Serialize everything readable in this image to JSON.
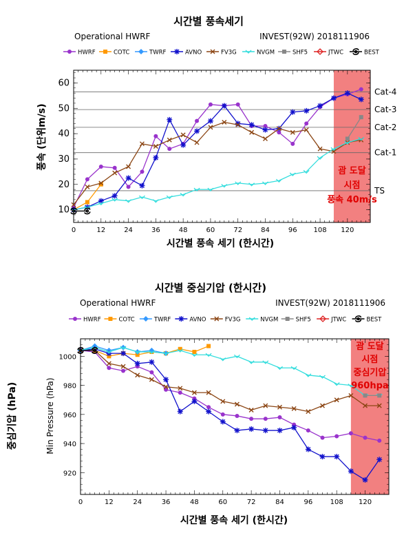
{
  "colors": {
    "HWRF": "#9933cc",
    "COTC": "#ff9900",
    "TWRF": "#3399ff",
    "AVNO": "#1111cc",
    "FV3G": "#8b4513",
    "NVGM": "#33dddd",
    "SHF5": "#888888",
    "JTWC": "#dd2222",
    "BEST": "#000000",
    "highlight": "#ee5555"
  },
  "legend": [
    "HWRF",
    "COTC",
    "TWRF",
    "AVNO",
    "FV3G",
    "NVGM",
    "SHF5",
    "JTWC",
    "BEST"
  ],
  "chart_data": [
    {
      "type": "line",
      "title": "시간별 풍속세기",
      "model_label": "Operational HWRF",
      "storm_label": "INVEST(92W) 2018111906",
      "xlabel": "시간별 풍속 세기 (한시간)",
      "ylabel": "풍속 (단위m/s)",
      "xlim": [
        0,
        130
      ],
      "ylim": [
        5,
        65
      ],
      "xticks": [
        "0",
        "12",
        "24",
        "36",
        "48",
        "60",
        "72",
        "84",
        "96",
        "108",
        "120"
      ],
      "yticks": [
        "10",
        "20",
        "30",
        "40",
        "50",
        "60"
      ],
      "categories_lines": [
        {
          "label": "Cat-4",
          "value": 56.5
        },
        {
          "label": "Cat-3",
          "value": 49.5
        },
        {
          "label": "Cat-2",
          "value": 42.5
        },
        {
          "label": "Cat-1",
          "value": 32.5
        },
        {
          "label": "TS",
          "value": 17.5
        }
      ],
      "highlight": {
        "x_from": 114,
        "x_to": 130,
        "text": [
          "괌 도달",
          "시점",
          "풍속 40m/s"
        ]
      },
      "series": [
        {
          "name": "HWRF",
          "x": [
            0,
            6,
            12,
            18,
            24,
            30,
            36,
            42,
            48,
            54,
            60,
            66,
            72,
            78,
            84,
            90,
            96,
            102,
            108,
            114,
            120,
            126
          ],
          "y": [
            11,
            22,
            27,
            26.5,
            19,
            25,
            39,
            34,
            36,
            45,
            51.5,
            51,
            51.5,
            43,
            43,
            40.5,
            36,
            44,
            50.5,
            54,
            55.5,
            57.5
          ]
        },
        {
          "name": "COTC",
          "x": [
            0,
            6,
            12
          ],
          "y": [
            10,
            13,
            20
          ]
        },
        {
          "name": "AVNO",
          "x": [
            0,
            6,
            12,
            18,
            24,
            30,
            36,
            42,
            48,
            54,
            60,
            66,
            72,
            78,
            84,
            90,
            96,
            102,
            108,
            114,
            120,
            126
          ],
          "y": [
            10,
            11,
            13.5,
            15.5,
            22.5,
            19.5,
            30.5,
            45.5,
            35.5,
            41,
            45,
            51,
            44,
            43.5,
            41.5,
            42,
            48.5,
            49,
            51,
            54,
            56,
            53.5
          ]
        },
        {
          "name": "FV3G",
          "x": [
            0,
            6,
            12,
            18,
            24,
            30,
            36,
            42,
            48,
            54,
            60,
            66,
            72,
            78,
            84,
            90,
            96,
            102,
            108,
            114,
            120,
            126
          ],
          "y": [
            12,
            19,
            20.5,
            24.5,
            27,
            36,
            35,
            37.5,
            39.5,
            36.5,
            42.5,
            44.5,
            43.5,
            40.5,
            38,
            42,
            40.5,
            41.5,
            34,
            33,
            36.5,
            37.5
          ]
        },
        {
          "name": "NVGM",
          "x": [
            0,
            6,
            12,
            18,
            24,
            30,
            36,
            42,
            48,
            54,
            60,
            66,
            72,
            78,
            84,
            90,
            96,
            102,
            108,
            114,
            120,
            126
          ],
          "y": [
            10,
            11,
            12.5,
            14,
            13.5,
            15,
            13.5,
            15,
            16,
            18,
            18,
            19.5,
            20.5,
            20,
            20.5,
            21.5,
            24,
            25,
            30.5,
            34,
            36.5,
            38
          ]
        },
        {
          "name": "SHF5",
          "x": [
            120,
            126
          ],
          "y": [
            38,
            46.5
          ]
        },
        {
          "name": "BEST",
          "x": [
            0,
            6
          ],
          "y": [
            9.5,
            9.5
          ]
        }
      ]
    },
    {
      "type": "line",
      "title": "시간별 중심기압 (한시간)",
      "model_label": "Operational HWRF",
      "storm_label": "INVEST(92W) 2018111906",
      "xlabel": "시간별 풍속 세기 (한시간)",
      "ylabel": "Min Pressure (hPa)",
      "side_label": "중심기압 (hPa)",
      "xlim": [
        0,
        130
      ],
      "ylim": [
        905,
        1012
      ],
      "xticks": [
        "0",
        "12",
        "24",
        "36",
        "48",
        "60",
        "72",
        "84",
        "96",
        "108",
        "120"
      ],
      "yticks": [
        "920",
        "940",
        "960",
        "980",
        "1000"
      ],
      "highlight": {
        "x_from": 114,
        "x_to": 130,
        "text": [
          "괌 도달",
          "시점",
          "중심기압",
          "960hpa"
        ]
      },
      "series": [
        {
          "name": "HWRF",
          "x": [
            0,
            6,
            12,
            18,
            24,
            30,
            36,
            42,
            48,
            54,
            60,
            66,
            72,
            78,
            84,
            90,
            96,
            102,
            108,
            114,
            120,
            126
          ],
          "y": [
            1004,
            1003,
            992,
            990,
            993,
            989,
            977,
            975,
            971,
            965,
            960,
            959,
            957,
            957,
            958,
            953,
            949,
            944,
            945,
            947,
            944,
            942
          ]
        },
        {
          "name": "COTC",
          "x": [
            0,
            6,
            12,
            18,
            24,
            30,
            36,
            42,
            48,
            54
          ],
          "y": [
            1004,
            1004,
            1000,
            1002,
            1001,
            1003,
            1002,
            1005,
            1003,
            1007
          ]
        },
        {
          "name": "TWRF",
          "x": [
            0,
            6,
            12,
            18,
            24,
            30,
            36
          ],
          "y": [
            1004,
            1007,
            1004,
            1006,
            1003,
            1004,
            1002
          ]
        },
        {
          "name": "AVNO",
          "x": [
            0,
            6,
            12,
            18,
            24,
            30,
            36,
            42,
            48,
            54,
            60,
            66,
            72,
            78,
            84,
            90,
            96,
            102,
            108,
            114,
            120,
            126
          ],
          "y": [
            1004,
            1005,
            1002,
            1002,
            995,
            996,
            984,
            962,
            969,
            962,
            955,
            949,
            950,
            949,
            949,
            951,
            936,
            931,
            931,
            921,
            915,
            929
          ]
        },
        {
          "name": "FV3G",
          "x": [
            0,
            6,
            12,
            18,
            24,
            30,
            36,
            42,
            48,
            54,
            60,
            66,
            72,
            78,
            84,
            90,
            96,
            102,
            108,
            114,
            120,
            126
          ],
          "y": [
            1004,
            1004,
            995,
            993,
            987,
            984,
            979,
            978,
            975,
            975,
            969,
            967,
            963,
            966,
            965,
            964,
            962,
            966,
            970,
            973,
            966,
            966
          ]
        },
        {
          "name": "NVGM",
          "x": [
            0,
            6,
            12,
            18,
            24,
            30,
            36,
            42,
            48,
            54,
            60,
            66,
            72,
            78,
            84,
            90,
            96,
            102,
            108,
            114,
            120,
            126
          ],
          "y": [
            1004,
            1006,
            1003,
            1006,
            1003,
            1003,
            1002,
            1004,
            1001,
            1001,
            998,
            1000,
            996,
            996,
            992,
            992,
            987,
            986,
            981,
            980,
            973,
            973
          ]
        },
        {
          "name": "SHF5",
          "x": [
            120,
            126
          ],
          "y": [
            973,
            973
          ]
        },
        {
          "name": "BEST",
          "x": [
            0,
            6
          ],
          "y": [
            1004,
            1004
          ]
        }
      ]
    }
  ]
}
